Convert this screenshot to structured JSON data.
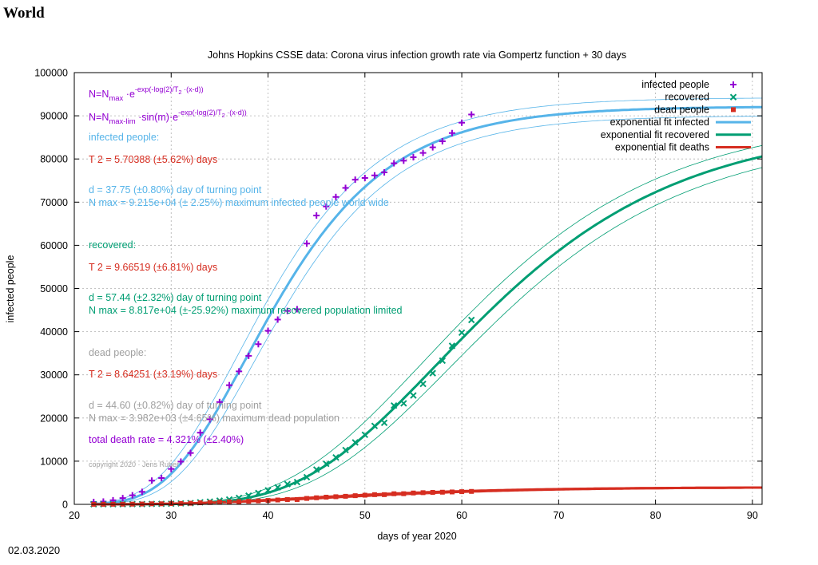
{
  "page": {
    "heading": "World",
    "date": "02.03.2020"
  },
  "colors": {
    "infected": "#9400d3",
    "recovered": "#009e73",
    "dead": "#d62d20",
    "fit_infected": "#56b4e9",
    "fit_recovered": "#009e73",
    "fit_deaths": "#d62d20",
    "gray_text": "#a0a0a0"
  },
  "annotations": {
    "formula1": "N=N_max·e^(-exp(-log(2)/T_2·(x-d)))",
    "formula2": "N=N_max-lim·sin(m)·e^(-exp(-log(2)/T_2·(x-d)))",
    "infected_header": "infected people:",
    "infected_t2": "T 2 = 5.70388 (±5.62%) days",
    "infected_d": "d = 37.75 (±0.80%) day of turning point",
    "infected_nmax": "N max = 9.215e+04 (± 2.25%) maximum infected people world wide",
    "recovered_header": "recovered:",
    "recovered_t2": "T 2 = 9.66519 (±6.81%) days",
    "recovered_d": "d = 57.44 (±2.32%) day of turning point",
    "recovered_nmax": "N max = 8.817e+04 (±-25.92%) maximum recovered population limited",
    "dead_header": "dead people:",
    "dead_t2": "T 2 = 8.64251 (±3.19%) days",
    "dead_d": "d = 44.60 (±0.82%) day of turning point",
    "dead_nmax": "N max = 3.982e+03 (±4.65%) maximum dead population",
    "death_rate": "total death rate = 4.321% (±2.40%)",
    "copyright": "copyright 2020 · Jens Ruber"
  },
  "chart_data": {
    "type": "scatter",
    "title": "Johns Hopkins CSSE data: Corona virus infection growth rate via Gompertz function + 30 days",
    "xlabel": "days of year 2020",
    "ylabel": "infected people",
    "xlim": [
      20,
      91
    ],
    "ylim": [
      0,
      100000
    ],
    "xticks": [
      20,
      30,
      40,
      50,
      60,
      70,
      80,
      90
    ],
    "yticks": [
      0,
      10000,
      20000,
      30000,
      40000,
      50000,
      60000,
      70000,
      80000,
      90000,
      100000
    ],
    "grid": true,
    "legend_position": "top-right",
    "series": [
      {
        "name": "infected people",
        "marker": "+",
        "color": "#9400d3",
        "x": [
          22,
          23,
          24,
          25,
          26,
          27,
          28,
          29,
          30,
          31,
          32,
          33,
          34,
          35,
          36,
          37,
          38,
          39,
          40,
          41,
          42,
          43,
          44,
          45,
          46,
          47,
          48,
          49,
          50,
          51,
          52,
          53,
          54,
          55,
          56,
          57,
          58,
          59,
          60,
          61
        ],
        "y": [
          550,
          650,
          950,
          1450,
          2100,
          2900,
          5500,
          6100,
          8200,
          9900,
          11900,
          16600,
          19700,
          23700,
          27600,
          30800,
          34400,
          37100,
          40200,
          42800,
          44800,
          45200,
          60400,
          66900,
          69000,
          71200,
          73300,
          75200,
          75600,
          76200,
          76900,
          79000,
          79600,
          80400,
          81400,
          82700,
          84100,
          86000,
          88400,
          90300
        ]
      },
      {
        "name": "recovered",
        "marker": "x",
        "color": "#009e73",
        "x": [
          22,
          23,
          24,
          25,
          26,
          27,
          28,
          29,
          30,
          31,
          32,
          33,
          34,
          35,
          36,
          37,
          38,
          39,
          40,
          41,
          42,
          43,
          44,
          45,
          46,
          47,
          48,
          49,
          50,
          51,
          52,
          53,
          54,
          55,
          56,
          57,
          58,
          59,
          60,
          61
        ],
        "y": [
          28,
          30,
          36,
          39,
          52,
          61,
          107,
          126,
          143,
          222,
          284,
          472,
          623,
          852,
          1124,
          1487,
          2011,
          2616,
          3244,
          3946,
          4683,
          5150,
          6295,
          8058,
          9395,
          10865,
          12583,
          14352,
          16121,
          18177,
          18890,
          22886,
          23394,
          25227,
          27905,
          30384,
          33277,
          36711,
          39782,
          42716
        ]
      },
      {
        "name": "dead people",
        "marker": "square",
        "color": "#d62d20",
        "x": [
          22,
          23,
          24,
          25,
          26,
          27,
          28,
          29,
          30,
          31,
          32,
          33,
          34,
          35,
          36,
          37,
          38,
          39,
          40,
          41,
          42,
          43,
          44,
          45,
          46,
          47,
          48,
          49,
          50,
          51,
          52,
          53,
          54,
          55,
          56,
          57,
          58,
          59,
          60,
          61
        ],
        "y": [
          17,
          18,
          26,
          42,
          56,
          82,
          131,
          133,
          171,
          213,
          259,
          362,
          426,
          492,
          564,
          634,
          719,
          806,
          906,
          1013,
          1113,
          1118,
          1371,
          1523,
          1666,
          1770,
          1868,
          2007,
          2122,
          2247,
          2251,
          2458,
          2469,
          2629,
          2708,
          2770,
          2814,
          2872,
          2941,
          2996
        ]
      },
      {
        "name": "exponential fit infected",
        "type": "line",
        "color": "#56b4e9",
        "nmax": 92150,
        "t2": 5.70388,
        "d": 37.75,
        "band_pct": 2.25
      },
      {
        "name": "exponential fit recovered",
        "type": "line",
        "color": "#009e73",
        "nmax": 88170,
        "t2": 9.66519,
        "d": 57.44,
        "band_pct": 2.32
      },
      {
        "name": "exponential fit deaths",
        "type": "line",
        "color": "#d62d20",
        "nmax": 3982,
        "t2": 8.64251,
        "d": 44.6,
        "band_pct": 4.65
      }
    ]
  }
}
